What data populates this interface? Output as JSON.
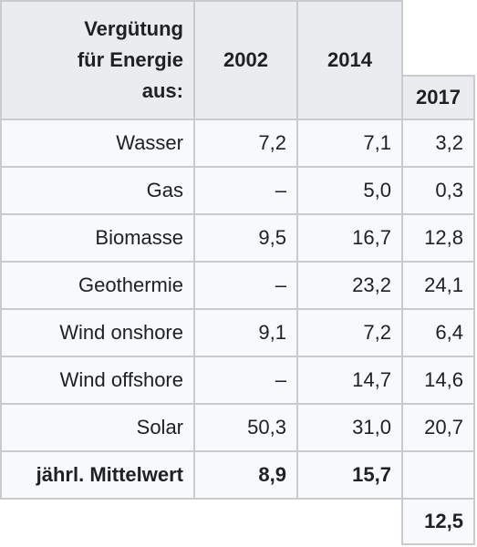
{
  "table": {
    "header": {
      "label_lines": [
        "Vergütung",
        "für Energie",
        "aus:"
      ],
      "col_2002": "2002",
      "col_2014": "2014",
      "col_2017": "2017"
    },
    "rows": [
      {
        "label": "Wasser",
        "v2002": "7,2",
        "v2014": "7,1",
        "v2017": "3,2"
      },
      {
        "label": "Gas",
        "v2002": "–",
        "v2014": "5,0",
        "v2017": "0,3"
      },
      {
        "label": "Biomasse",
        "v2002": "9,5",
        "v2014": "16,7",
        "v2017": "12,8"
      },
      {
        "label": "Geothermie",
        "v2002": "–",
        "v2014": "23,2",
        "v2017": "24,1"
      },
      {
        "label": "Wind onshore",
        "v2002": "9,1",
        "v2014": "7,2",
        "v2017": "6,4"
      },
      {
        "label": "Wind offshore",
        "v2002": "–",
        "v2014": "14,7",
        "v2017": "14,6"
      },
      {
        "label": "Solar",
        "v2002": "50,3",
        "v2014": "31,0",
        "v2017": "20,7"
      }
    ],
    "mean_row": {
      "label": "jährl. Mittelwert",
      "v2002": "8,9",
      "v2014": "15,7",
      "v2017": "",
      "v2017_below": "12,5"
    }
  }
}
